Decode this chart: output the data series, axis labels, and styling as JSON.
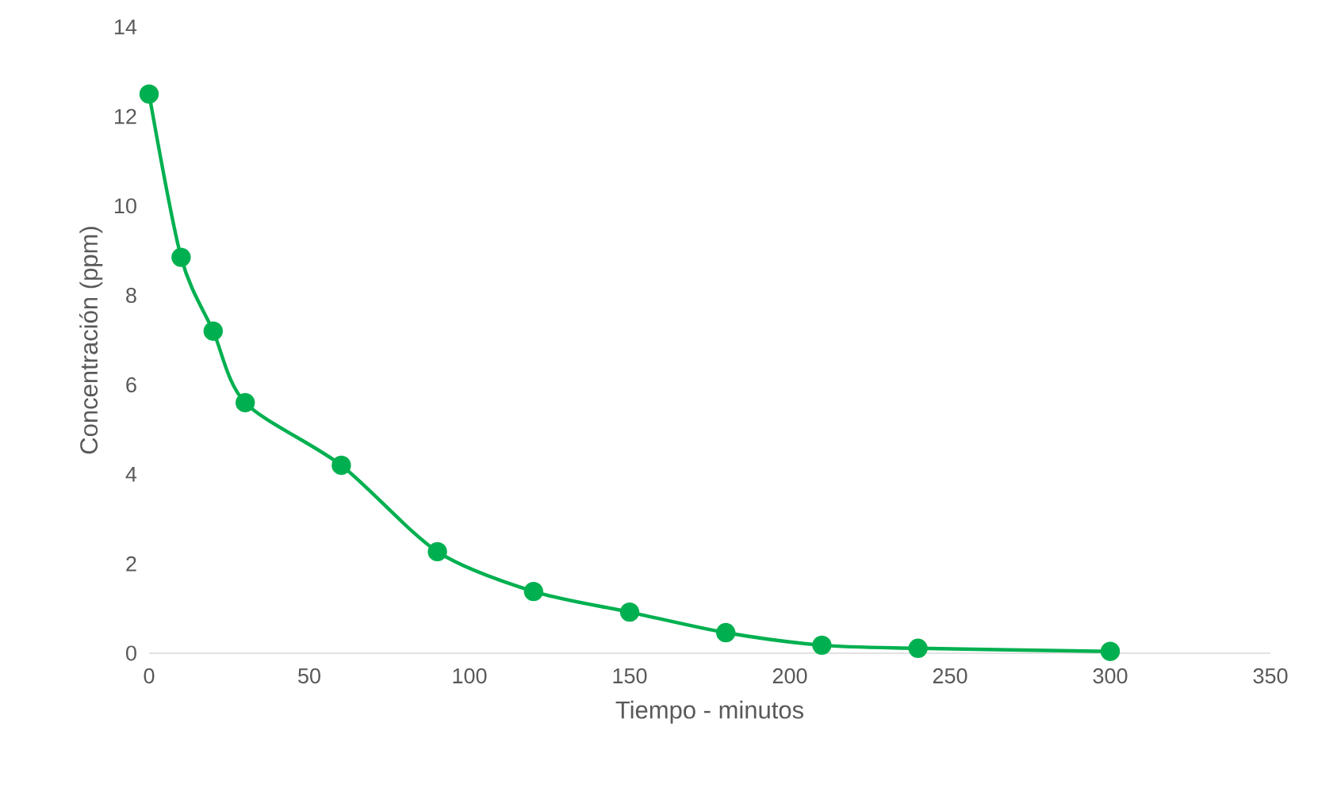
{
  "chart_data": {
    "type": "line",
    "xlabel": "Tiempo - minutos",
    "ylabel": "Concentración (ppm)",
    "x": [
      0,
      10,
      20,
      30,
      60,
      90,
      120,
      150,
      180,
      210,
      240,
      300
    ],
    "series": [
      {
        "color": "#00b050",
        "values": [
          12.5,
          8.85,
          7.2,
          5.6,
          4.2,
          2.27,
          1.38,
          0.92,
          0.46,
          0.18,
          0.11,
          0.04
        ]
      }
    ],
    "xlim": [
      0,
      350
    ],
    "ylim": [
      0,
      14
    ],
    "xticks": [
      0,
      50,
      100,
      150,
      200,
      250,
      300,
      350
    ],
    "yticks": [
      0,
      2,
      4,
      6,
      8,
      10,
      12,
      14
    ],
    "grid": false,
    "marker": "circle",
    "line_style": "solid"
  }
}
